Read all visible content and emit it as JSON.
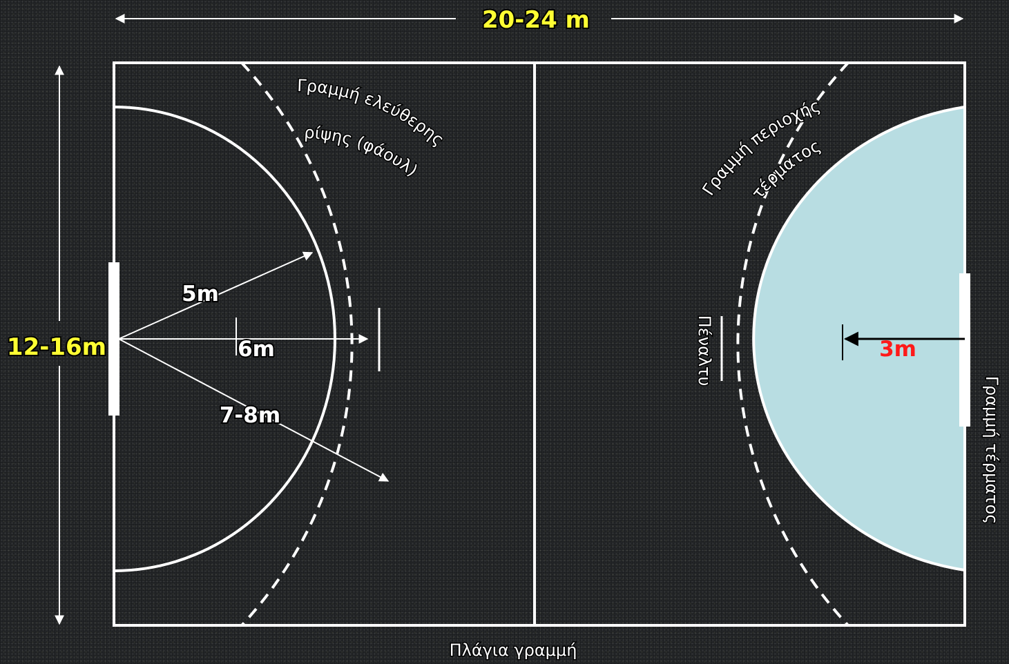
{
  "colors": {
    "background": "#1b1d1f",
    "lines": "#ffffff",
    "dimension_text": "#ffff33",
    "goal_area_fill": "#b8dde2",
    "goal_area_measure_text": "#ff1a1a"
  },
  "dimensions": {
    "length": "20-24 m",
    "width": "12-16m"
  },
  "measurements": {
    "goal_area_radius": "5m",
    "penalty_distance": "6m",
    "free_throw_radius": "7-8m",
    "goalkeeper_line": "3m"
  },
  "labels": {
    "free_throw_line_line1": "Γραμμή ελεύθερης",
    "free_throw_line_line2": "ρίψης (φάουλ)",
    "goal_area_line_line1": "Γραμμή περιοχής",
    "goal_area_line_line2": "τέρματος",
    "penalty": "Πέναλτυ",
    "goal_line": "Γραμμή τέρματος",
    "side_line": "Πλάγια γραμμή"
  }
}
